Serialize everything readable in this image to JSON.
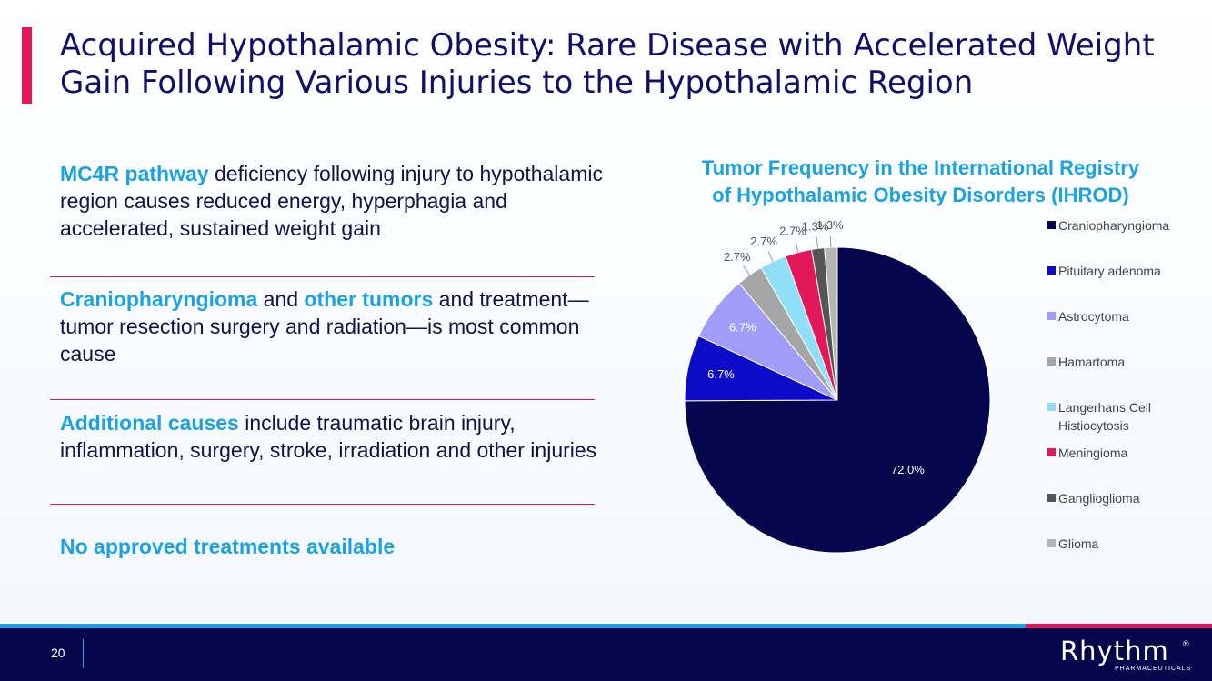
{
  "title": {
    "line1": "Acquired Hypothalamic Obesity: Rare Disease with Accelerated Weight",
    "line2": "Gain Following Various Injuries to the Hypothalamic Region"
  },
  "bullets": [
    {
      "highlight1": "MC4R pathway",
      "text1": " deficiency following injury to hypothalamic region causes reduced energy, hyperphagia and accelerated, sustained weight gain"
    },
    {
      "highlight1": "Craniopharyngioma",
      "text1": " and ",
      "highlight2": "other tumors",
      "text2": " and treatment—tumor resection surgery and radiation—is most common cause"
    },
    {
      "highlight1": "Additional causes",
      "text1": " include traumatic brain injury, inflammation, surgery, stroke, irradiation and other injuries"
    },
    {
      "highlight1": "No approved treatments available"
    }
  ],
  "chart_data": {
    "type": "pie",
    "title_line1": "Tumor Frequency in the International Registry",
    "title_line2": "of Hypothalamic Obesity Disorders (IHROD)",
    "categories": [
      "Craniopharyngioma",
      "Pituitary adenoma",
      "Astrocytoma",
      "Hamartoma",
      "Langerhans Cell Histiocytosis",
      "Meningioma",
      "Ganglioglioma",
      "Glioma"
    ],
    "values": [
      72.0,
      6.7,
      6.7,
      2.7,
      2.7,
      2.7,
      1.3,
      1.3
    ],
    "labels": [
      "72.0%",
      "6.7%",
      "6.7%",
      "2.7%",
      "2.7%",
      "2.7%",
      "1.3%",
      "1.3%"
    ],
    "colors": [
      "#06064d",
      "#0c0cc8",
      "#a09cf7",
      "#a5a5a5",
      "#8fe0f7",
      "#e3185a",
      "#555555",
      "#b5b5b5"
    ],
    "legend_position": "right"
  },
  "footer": {
    "page_number": "20",
    "logo_text": "Rhythm",
    "logo_reg": "®",
    "logo_sub": "PHARMACEUTICALS"
  }
}
